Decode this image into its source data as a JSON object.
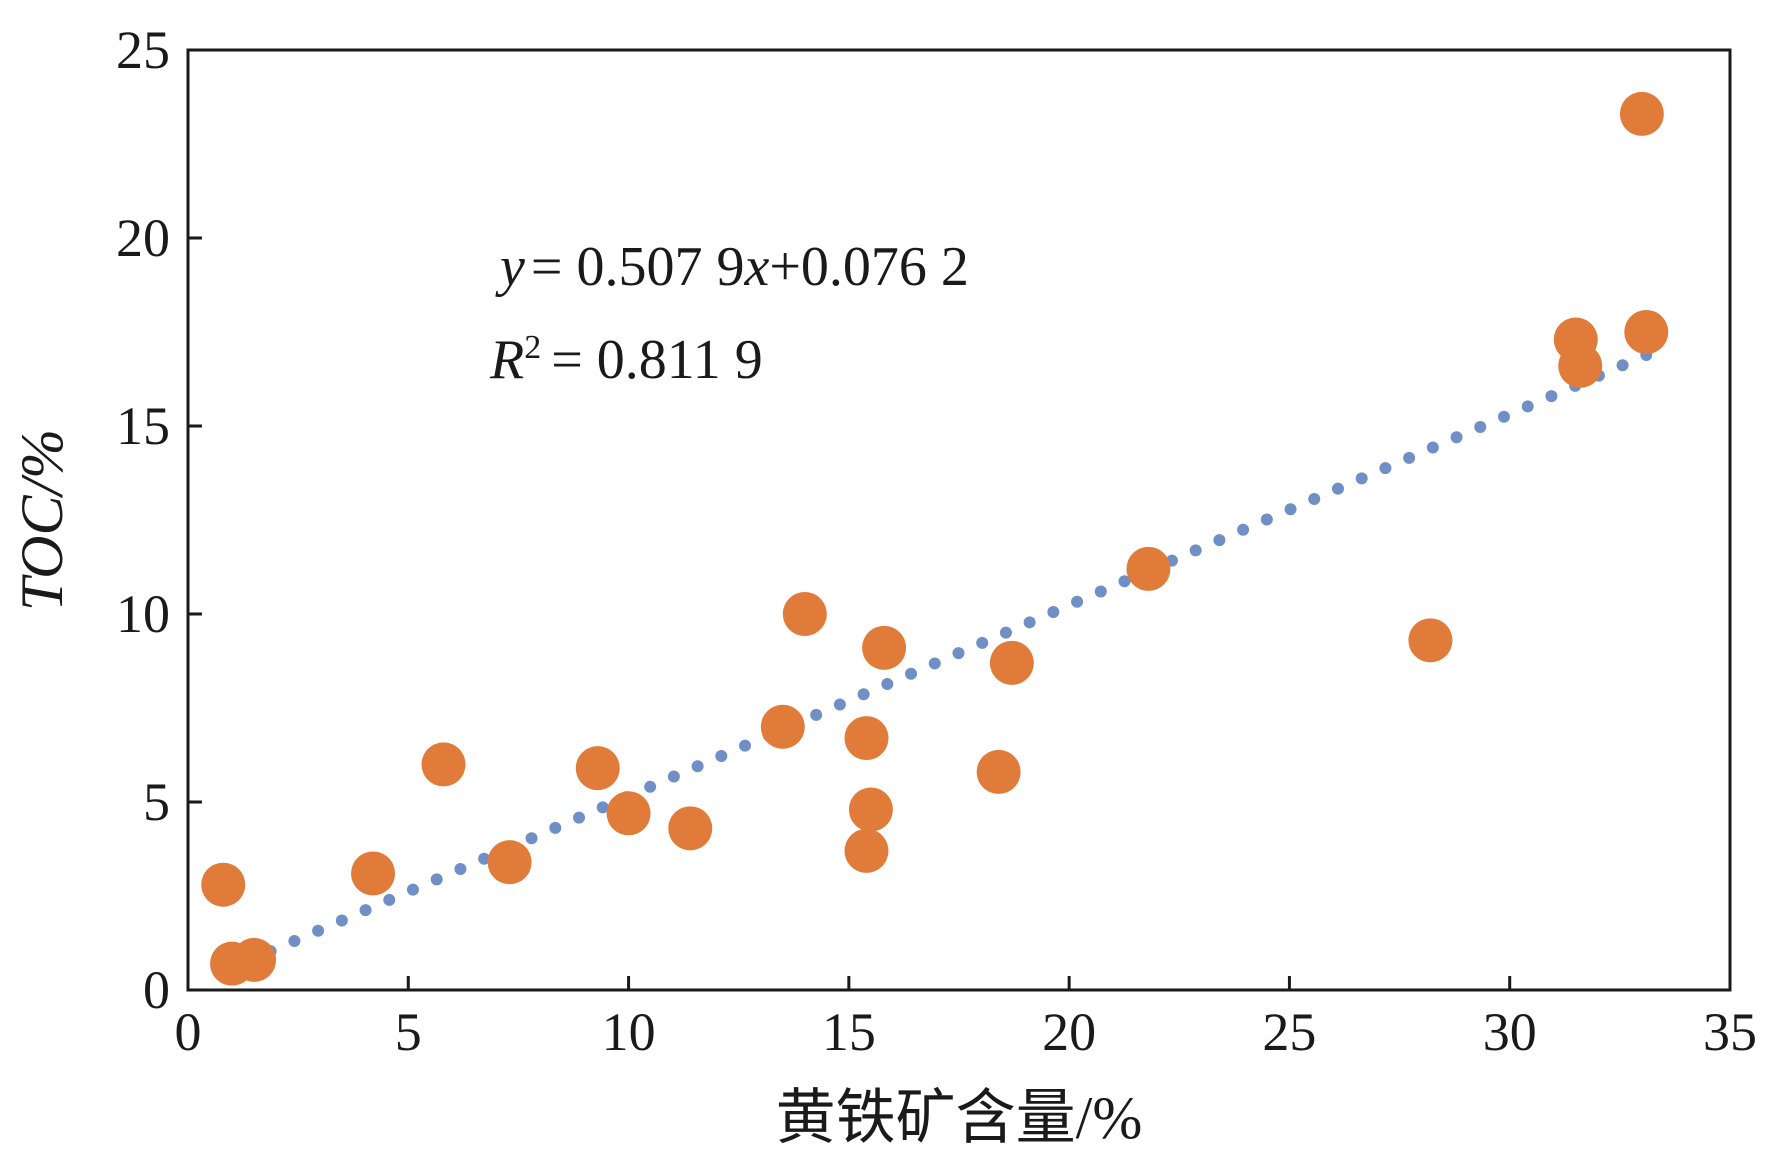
{
  "chart_data": {
    "type": "scatter",
    "xlabel": "黄铁矿含量/%",
    "ylabel": "TOC/%",
    "xlim": [
      0,
      35
    ],
    "ylim": [
      0,
      25
    ],
    "x_ticks": [
      0,
      5,
      10,
      15,
      20,
      25,
      30,
      35
    ],
    "y_ticks": [
      0,
      5,
      10,
      15,
      20,
      25
    ],
    "grid": false,
    "colors": {
      "points": "#e07b39",
      "trendline": "#6f8fc6",
      "axis": "#1a1a1a"
    },
    "series": [
      {
        "points": [
          {
            "x": 0.8,
            "y": 2.8
          },
          {
            "x": 1.0,
            "y": 0.7
          },
          {
            "x": 1.5,
            "y": 0.8
          },
          {
            "x": 4.2,
            "y": 3.1
          },
          {
            "x": 5.8,
            "y": 6.0
          },
          {
            "x": 7.3,
            "y": 3.4
          },
          {
            "x": 9.3,
            "y": 5.9
          },
          {
            "x": 10.0,
            "y": 4.7
          },
          {
            "x": 11.4,
            "y": 4.3
          },
          {
            "x": 13.5,
            "y": 7.0
          },
          {
            "x": 14.0,
            "y": 10.0
          },
          {
            "x": 15.4,
            "y": 6.7
          },
          {
            "x": 15.5,
            "y": 4.8
          },
          {
            "x": 15.4,
            "y": 3.7
          },
          {
            "x": 15.8,
            "y": 9.1
          },
          {
            "x": 18.4,
            "y": 5.8
          },
          {
            "x": 18.7,
            "y": 8.7
          },
          {
            "x": 21.8,
            "y": 11.2
          },
          {
            "x": 28.2,
            "y": 9.3
          },
          {
            "x": 31.5,
            "y": 17.3
          },
          {
            "x": 31.6,
            "y": 16.6
          },
          {
            "x": 33.0,
            "y": 23.3
          },
          {
            "x": 33.1,
            "y": 17.5
          }
        ]
      }
    ],
    "trendline": {
      "slope": 0.5079,
      "intercept": 0.0762,
      "x_range": [
        0.8,
        33.1
      ],
      "style": "dotted"
    },
    "annotations": {
      "equation": {
        "y": "y",
        "eq": "= 0.507 9",
        "x": "x",
        "rest": "+0.076 2"
      },
      "r2": {
        "r": "R",
        "sup": "2",
        "eq": "= 0.811 9"
      }
    }
  }
}
